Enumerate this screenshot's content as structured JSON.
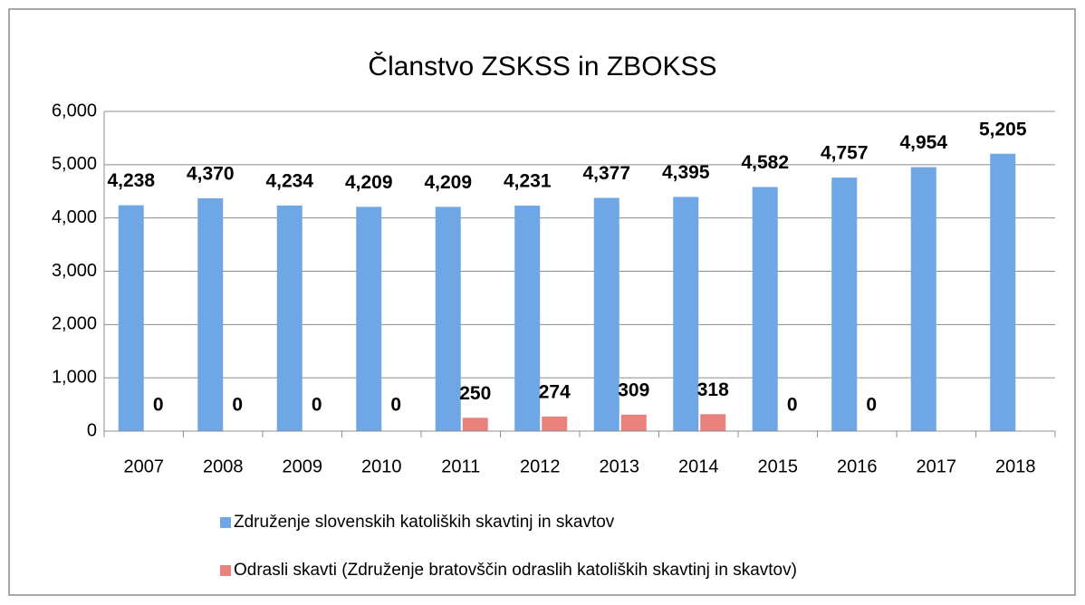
{
  "chart_data": {
    "type": "bar",
    "title": "Članstvo ZSKSS in ZBOKSS",
    "categories": [
      "2007",
      "2008",
      "2009",
      "2010",
      "2011",
      "2012",
      "2013",
      "2014",
      "2015",
      "2016",
      "2017",
      "2018"
    ],
    "series": [
      {
        "name": "Združenje slovenskih katoliških skavtinj in skavtov",
        "color": "#6ea6e6",
        "values": [
          4238,
          4370,
          4234,
          4209,
          4209,
          4231,
          4377,
          4395,
          4582,
          4757,
          4954,
          5205
        ],
        "value_labels": [
          "4,238",
          "4,370",
          "4,234",
          "4,209",
          "4,209",
          "4,231",
          "4,377",
          "4,395",
          "4,582",
          "4,757",
          "4,954",
          "5,205"
        ]
      },
      {
        "name": "Odrasli skavti (Združenje bratovščin odraslih katoliških skavtinj in skavtov)",
        "color": "#e9817d",
        "values": [
          0,
          0,
          0,
          0,
          250,
          274,
          309,
          318,
          0,
          0,
          null,
          null
        ]
      }
    ],
    "ylim": [
      0,
      6000
    ],
    "yticks": [
      0,
      {
        "value": 1000,
        "label": "1,000"
      },
      {
        "value": 2000,
        "label": "2,000"
      },
      {
        "value": 3000,
        "label": "3,000"
      },
      {
        "value": 4000,
        "label": "4,000"
      },
      {
        "value": 5000,
        "label": "5,000"
      },
      {
        "value": 6000,
        "label": "6,000"
      }
    ],
    "grid": true
  }
}
